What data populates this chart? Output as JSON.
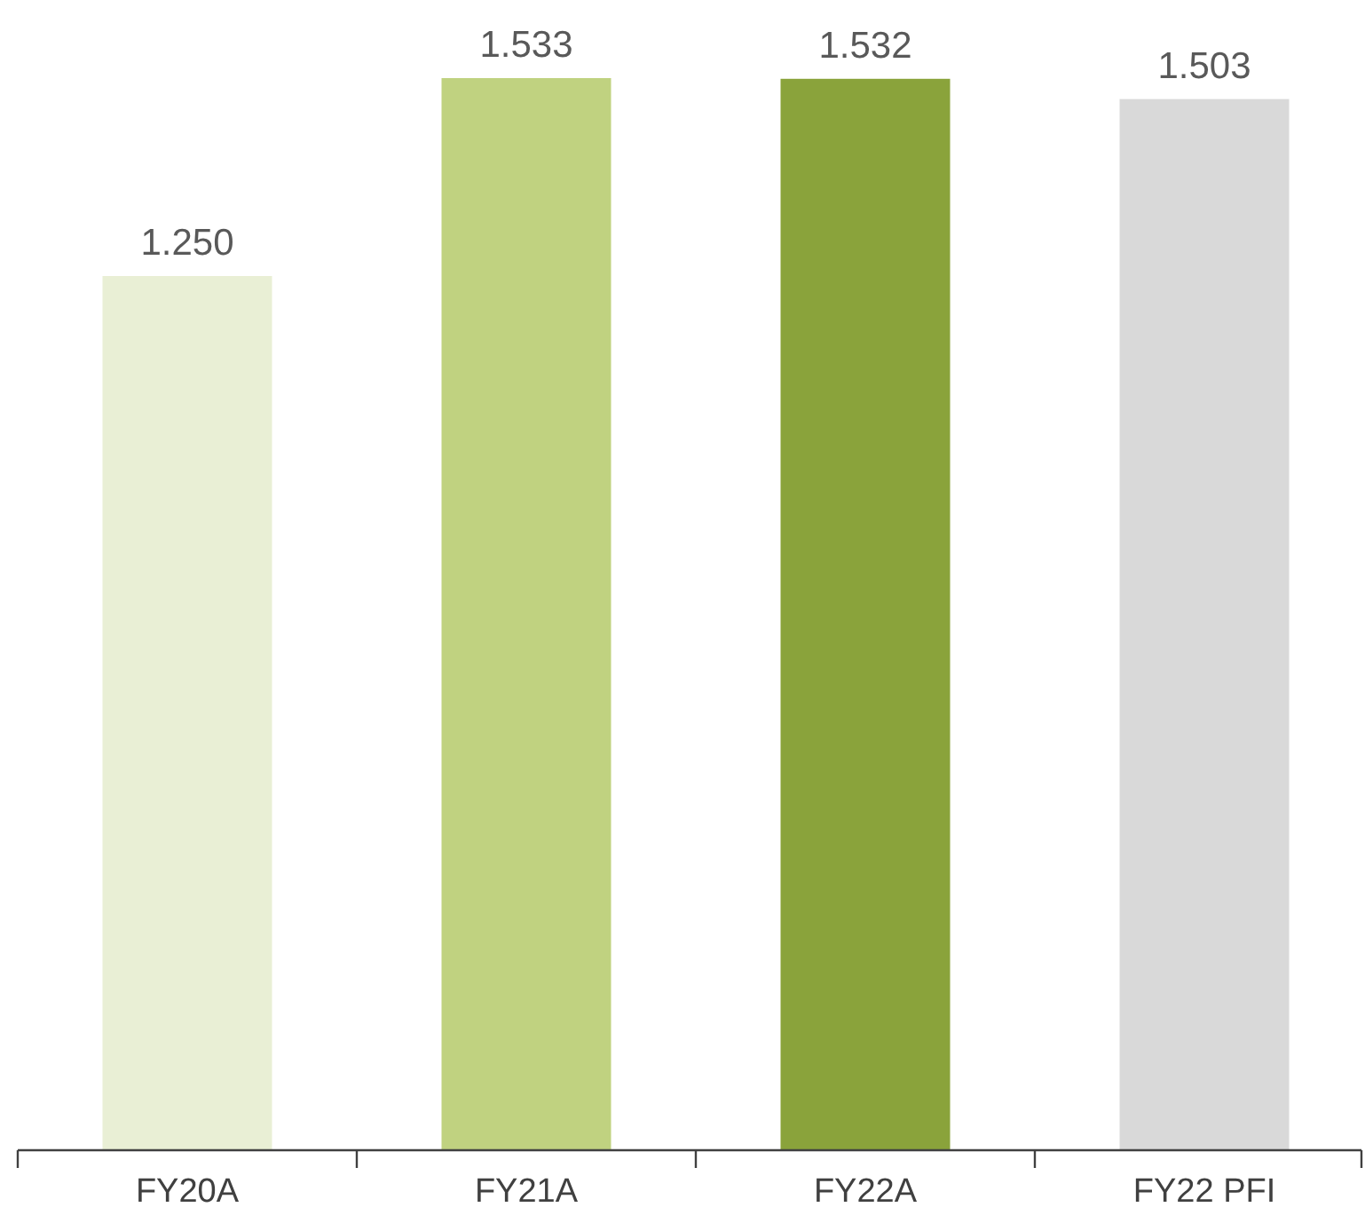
{
  "chart_data": {
    "type": "bar",
    "categories": [
      "FY20A",
      "FY21A",
      "FY22A",
      "FY22 PFI"
    ],
    "values": [
      1.25,
      1.533,
      1.532,
      1.503
    ],
    "colors": [
      "#e9efd5",
      "#c0d280",
      "#8aa33b",
      "#d9d9d9"
    ],
    "value_labels": [
      "1.250",
      "1.533",
      "1.532",
      "1.503"
    ]
  }
}
